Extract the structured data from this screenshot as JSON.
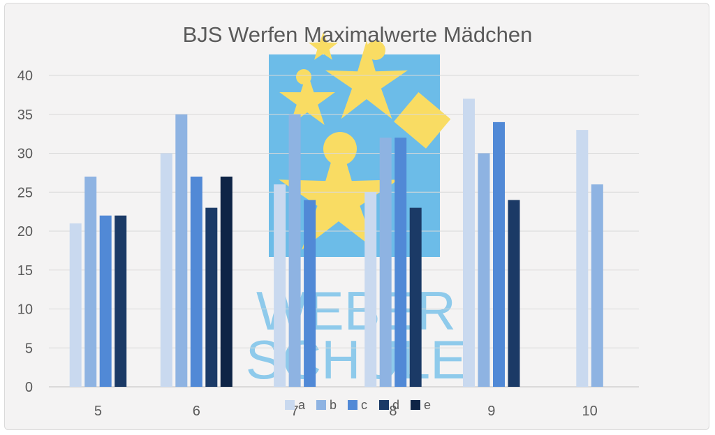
{
  "chart_data": {
    "type": "bar",
    "title": "BJS Werfen Maximalwerte Mädchen",
    "xlabel": "",
    "ylabel": "",
    "ylim": [
      0,
      40
    ],
    "yticks": [
      "0",
      "5",
      "10",
      "15",
      "20",
      "25",
      "30",
      "35",
      "40"
    ],
    "categories": [
      "5",
      "6",
      "7",
      "8",
      "9",
      "10"
    ],
    "series": [
      {
        "name": "a",
        "color": "#c9d9ef",
        "values": [
          21,
          30,
          26,
          25,
          37,
          33
        ]
      },
      {
        "name": "b",
        "color": "#8eb3e2",
        "values": [
          27,
          35,
          35,
          32,
          30,
          26
        ]
      },
      {
        "name": "c",
        "color": "#5189d6",
        "values": [
          22,
          27,
          24,
          32,
          34,
          null
        ]
      },
      {
        "name": "d",
        "color": "#1b3a66",
        "values": [
          22,
          23,
          null,
          23,
          24,
          null
        ]
      },
      {
        "name": "e",
        "color": "#0e2446",
        "values": [
          null,
          27,
          null,
          null,
          null,
          null
        ]
      }
    ],
    "grid": true,
    "legend_position": "bottom"
  },
  "watermark": {
    "logo_text": [
      "WEBER",
      "SCHULE"
    ],
    "box_color": "#6cbce8",
    "star_color": "#f9dc63"
  }
}
